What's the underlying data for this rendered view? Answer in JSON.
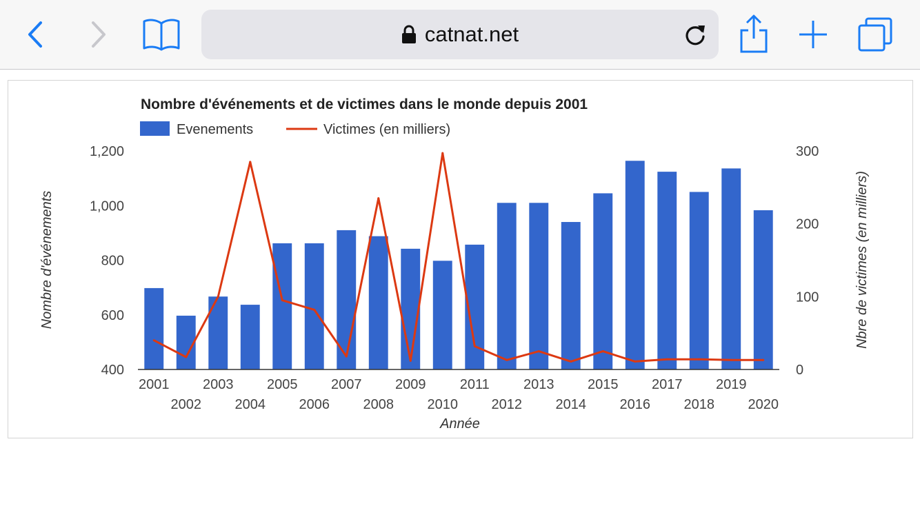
{
  "browser": {
    "url": "catnat.net",
    "icons": {
      "back": "chevron-left-icon",
      "forward": "chevron-right-icon",
      "bookmarks": "book-icon",
      "lock": "lock-icon",
      "reload": "reload-icon",
      "share": "share-icon",
      "new_tab": "plus-icon",
      "tabs": "tabs-icon"
    },
    "accent_color": "#1a7cf5"
  },
  "chart_data": {
    "type": "bar",
    "title": "Nombre d'événements et de victimes dans le monde depuis 2001",
    "xlabel": "Année",
    "ylabel": "Nombre d'événements",
    "y2label": "Nbre de victimes (en milliers)",
    "categories": [
      "2001",
      "2002",
      "2003",
      "2004",
      "2005",
      "2006",
      "2007",
      "2008",
      "2009",
      "2010",
      "2011",
      "2012",
      "2013",
      "2014",
      "2015",
      "2016",
      "2017",
      "2018",
      "2019",
      "2020"
    ],
    "series": [
      {
        "name": "Evenements",
        "type": "bar",
        "axis": "left",
        "color": "#3366cc",
        "values": [
          698,
          597,
          667,
          637,
          862,
          862,
          910,
          888,
          842,
          798,
          857,
          1010,
          1010,
          940,
          1045,
          1164,
          1124,
          1050,
          1136,
          983
        ]
      },
      {
        "name": "Victimes (en milliers)",
        "type": "line",
        "axis": "right",
        "color": "#dc3912",
        "values": [
          40,
          17,
          100,
          285,
          95,
          82,
          18,
          235,
          12,
          297,
          32,
          13,
          25,
          11,
          25,
          11,
          14,
          14,
          13,
          13
        ]
      }
    ],
    "ylim": [
      400,
      1200
    ],
    "yticks": [
      "400",
      "600",
      "800",
      "1,000",
      "1,200"
    ],
    "y2lim": [
      0,
      300
    ],
    "y2ticks": [
      "0",
      "100",
      "200",
      "300"
    ],
    "legend_position": "top-left",
    "grid": false
  }
}
